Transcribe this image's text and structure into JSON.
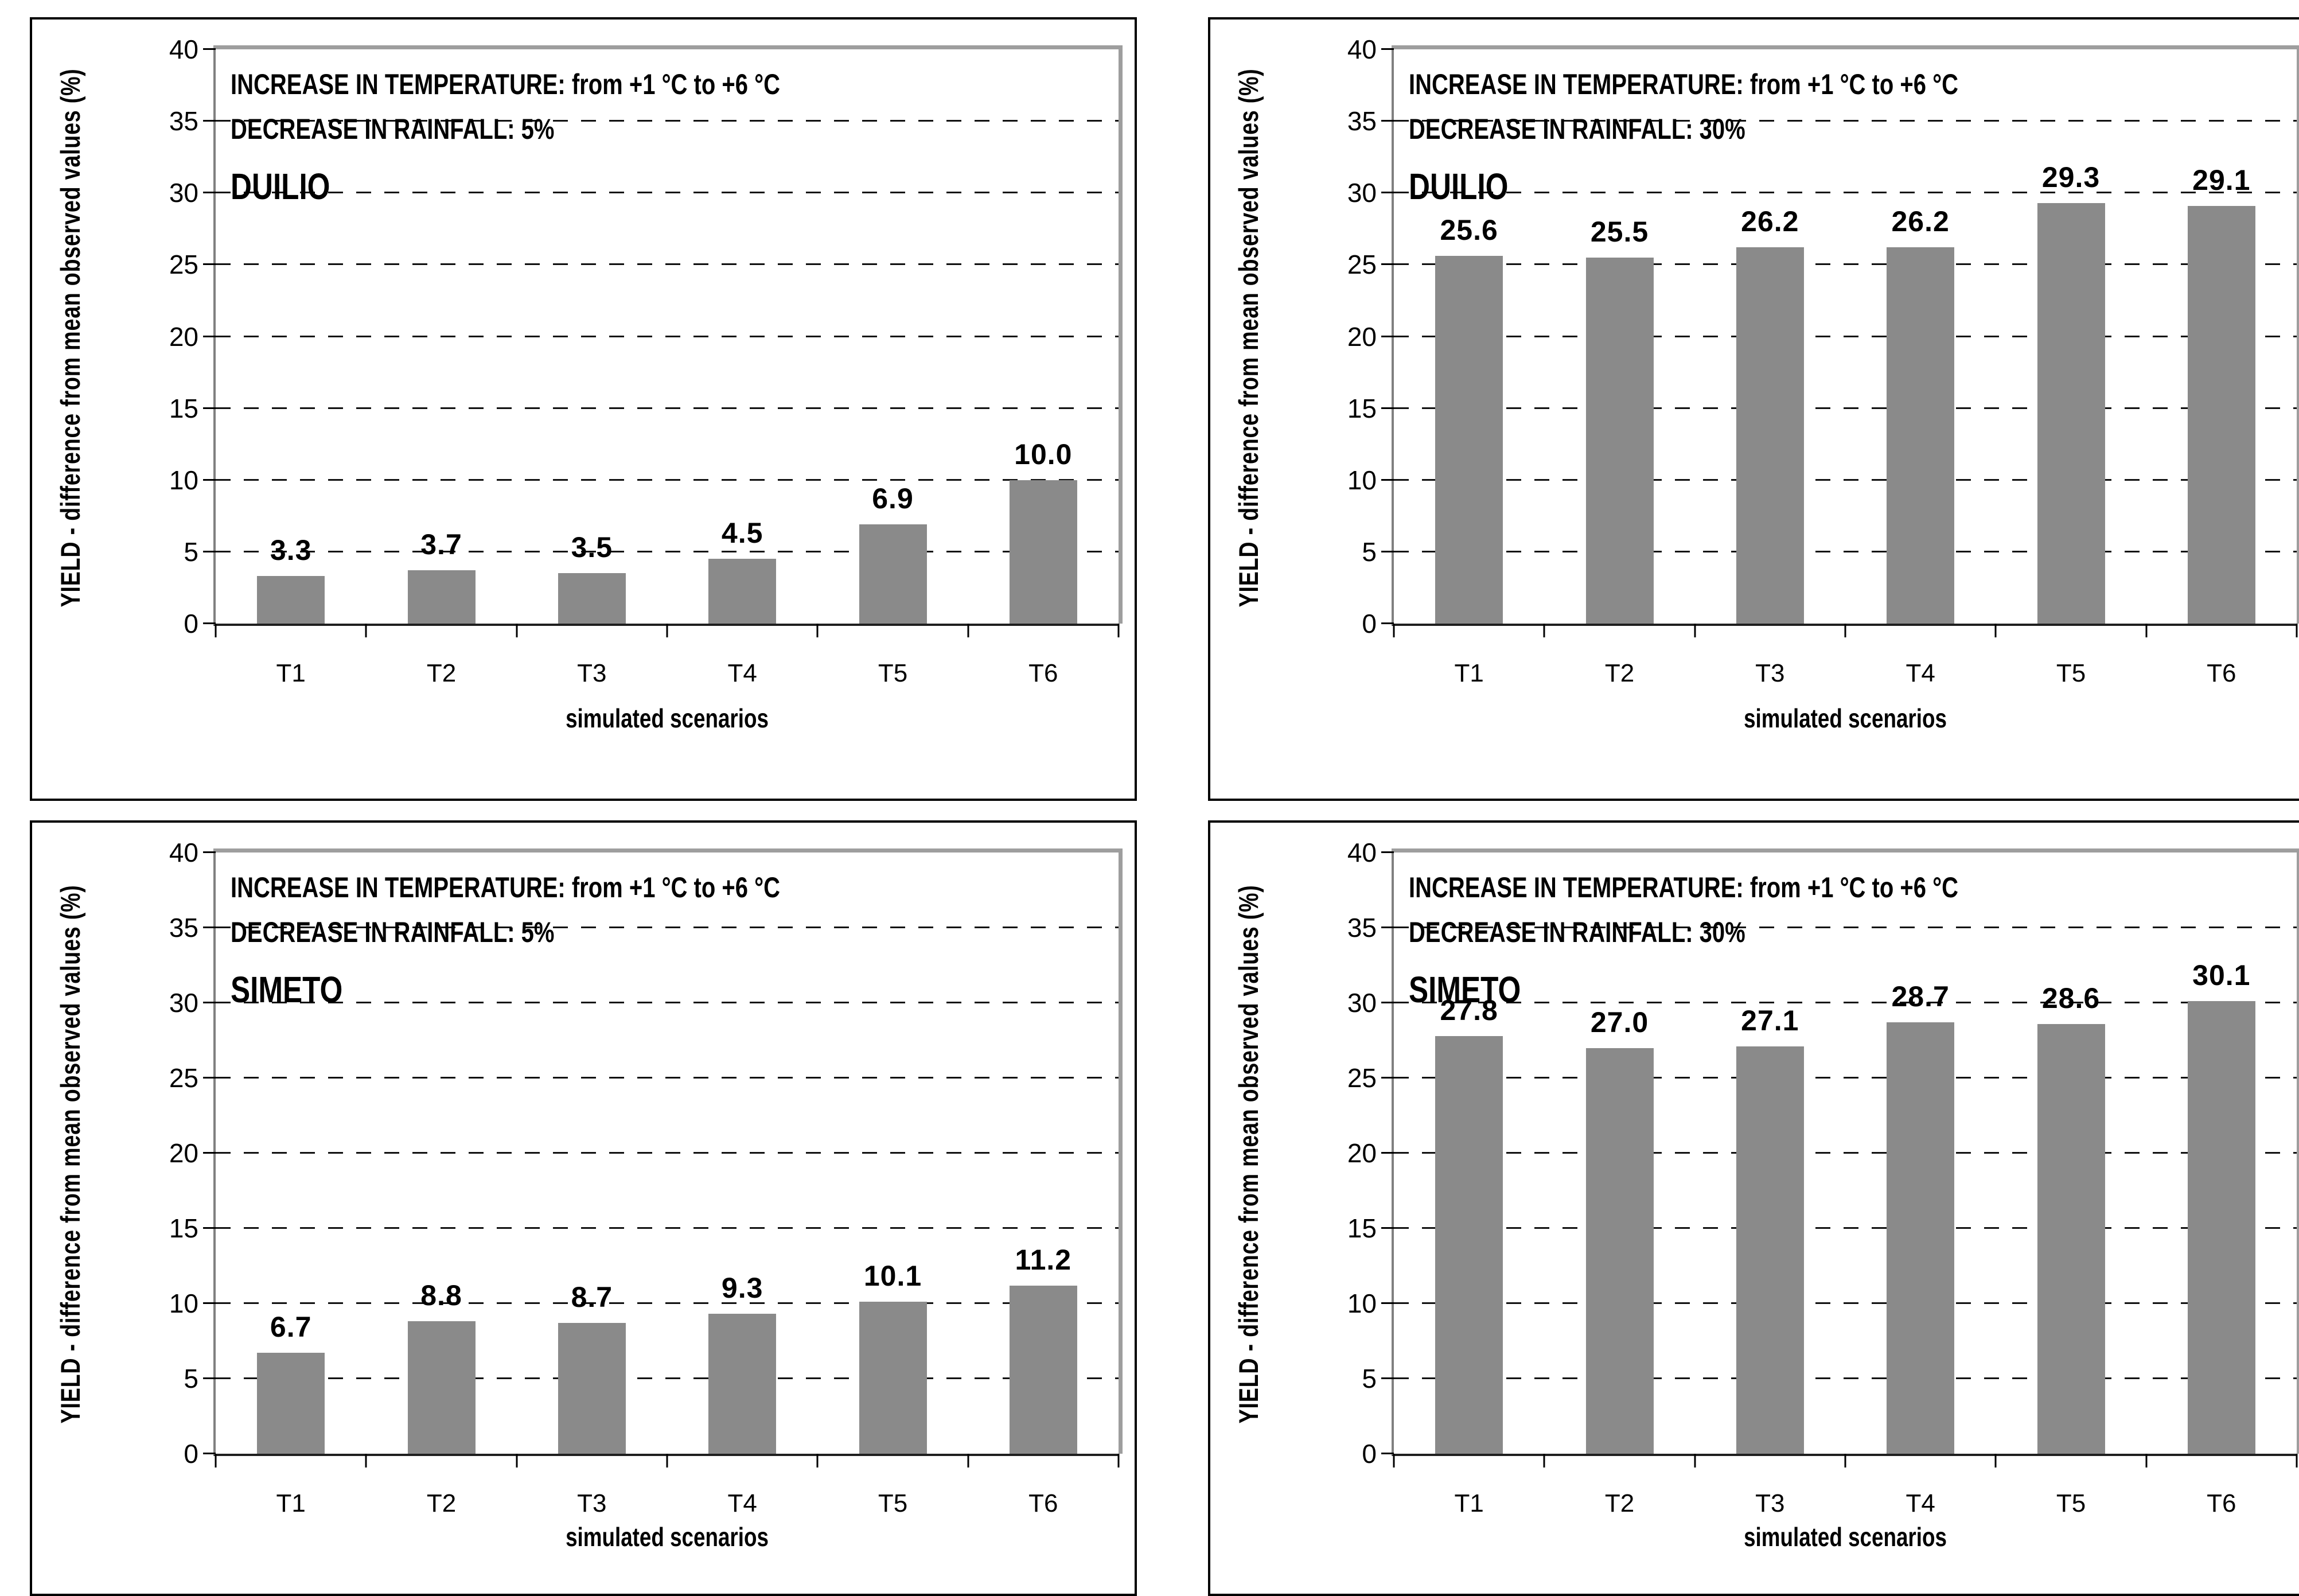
{
  "page": {
    "background": "#ffffff"
  },
  "style": {
    "bar_color": "#8a8a8a",
    "grid_color": "#111111",
    "y_axis_color": "#808080",
    "baseline_color": "#1f1f1f",
    "plot_shadow_border_color": "#9e9e9e",
    "panel_border_color": "#000000",
    "text_color": "#000000"
  },
  "chart_data": [
    {
      "type": "bar",
      "title_line1": "INCREASE IN TEMPERATURE: from +1 °C to +6 °C",
      "title_line2": "DECREASE IN RAINFALL: 5%",
      "panel_label": "DUILIO",
      "categories": [
        "T1",
        "T2",
        "T3",
        "T4",
        "T5",
        "T6"
      ],
      "values": [
        3.3,
        3.7,
        3.5,
        4.5,
        6.9,
        10.0
      ],
      "data_labels": [
        "3.3",
        "3.7",
        "3.5",
        "4.5",
        "6.9",
        "10.0"
      ],
      "xlabel": "simulated scenarios",
      "ylabel": "YIELD - difference from mean observed values (%)",
      "ylim": [
        0,
        40
      ],
      "ytick_step": 5,
      "grid": "horizontal-dashed",
      "legend": "none"
    },
    {
      "type": "bar",
      "title_line1": "INCREASE IN TEMPERATURE: from +1 °C to +6 °C",
      "title_line2": "DECREASE IN RAINFALL: 30%",
      "panel_label": "DUILIO",
      "categories": [
        "T1",
        "T2",
        "T3",
        "T4",
        "T5",
        "T6"
      ],
      "values": [
        25.6,
        25.5,
        26.2,
        26.2,
        29.3,
        29.1
      ],
      "data_labels": [
        "25.6",
        "25.5",
        "26.2",
        "26.2",
        "29.3",
        "29.1"
      ],
      "xlabel": "simulated scenarios",
      "ylabel": "YIELD - difference from mean observed values (%)",
      "ylim": [
        0,
        40
      ],
      "ytick_step": 5,
      "grid": "horizontal-dashed",
      "legend": "none"
    },
    {
      "type": "bar",
      "title_line1": "INCREASE IN TEMPERATURE: from +1 °C to +6 °C",
      "title_line2": "DECREASE IN RAINFALL: 5%",
      "panel_label": "SIMETO",
      "categories": [
        "T1",
        "T2",
        "T3",
        "T4",
        "T5",
        "T6"
      ],
      "values": [
        6.7,
        8.8,
        8.7,
        9.3,
        10.1,
        11.2
      ],
      "data_labels": [
        "6.7",
        "8.8",
        "8.7",
        "9.3",
        "10.1",
        "11.2"
      ],
      "xlabel": "simulated scenarios",
      "ylabel": "YIELD - difference from mean observed values (%)",
      "ylim": [
        0,
        40
      ],
      "ytick_step": 5,
      "grid": "horizontal-dashed",
      "legend": "none"
    },
    {
      "type": "bar",
      "title_line1": "INCREASE IN TEMPERATURE: from +1 °C to +6 °C",
      "title_line2": "DECREASE IN RAINFALL: 30%",
      "panel_label": "SIMETO",
      "categories": [
        "T1",
        "T2",
        "T3",
        "T4",
        "T5",
        "T6"
      ],
      "values": [
        27.8,
        27.0,
        27.1,
        28.7,
        28.6,
        30.1
      ],
      "data_labels": [
        "27.8",
        "27.0",
        "27.1",
        "28.7",
        "28.6",
        "30.1"
      ],
      "xlabel": "simulated scenarios",
      "ylabel": "YIELD - difference from mean observed values (%)",
      "ylim": [
        0,
        40
      ],
      "ytick_step": 5,
      "grid": "horizontal-dashed",
      "legend": "none"
    }
  ]
}
